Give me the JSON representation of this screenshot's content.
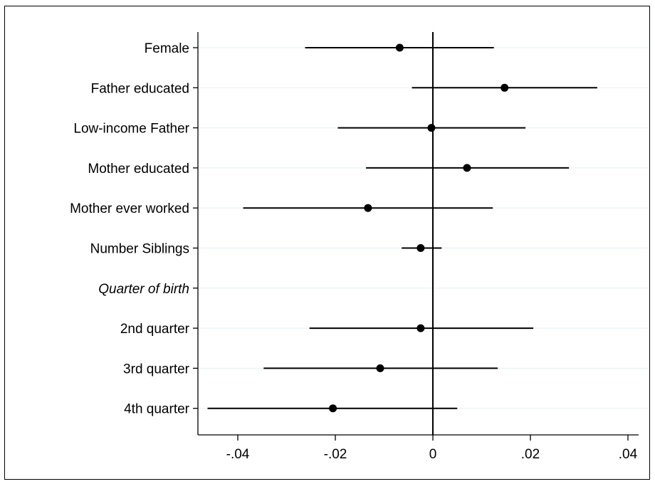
{
  "chart_data": {
    "type": "scatter",
    "subtype": "coefficient-plot",
    "title": "",
    "xlabel": "",
    "ylabel": "",
    "xlim": [
      -0.047,
      0.043
    ],
    "xticks": [
      -0.04,
      -0.02,
      0,
      0.02,
      0.04
    ],
    "xtick_labels": [
      "-.04",
      "-.02",
      "0",
      ".02",
      ".04"
    ],
    "reference_line_x": 0,
    "grid": "horizontal",
    "rows": [
      {
        "label": "Female",
        "estimate": -0.0068,
        "ci_low": -0.0262,
        "ci_high": 0.0125,
        "header": false
      },
      {
        "label": "Father educated",
        "estimate": 0.0147,
        "ci_low": -0.0043,
        "ci_high": 0.0337,
        "header": false
      },
      {
        "label": "Low-income Father",
        "estimate": -0.0003,
        "ci_low": -0.0195,
        "ci_high": 0.019,
        "header": false
      },
      {
        "label": "Mother educated",
        "estimate": 0.007,
        "ci_low": -0.0137,
        "ci_high": 0.0279,
        "header": false
      },
      {
        "label": "Mother ever worked",
        "estimate": -0.0133,
        "ci_low": -0.0389,
        "ci_high": 0.0123,
        "header": false
      },
      {
        "label": "Number Siblings",
        "estimate": -0.0025,
        "ci_low": -0.0064,
        "ci_high": 0.0018,
        "header": false
      },
      {
        "label": "Quarter of birth",
        "header": true
      },
      {
        "label": "2nd quarter",
        "estimate": -0.0025,
        "ci_low": -0.0253,
        "ci_high": 0.0206,
        "header": false
      },
      {
        "label": "3rd quarter",
        "estimate": -0.0108,
        "ci_low": -0.0347,
        "ci_high": 0.0133,
        "header": false
      },
      {
        "label": "4th quarter",
        "estimate": -0.0205,
        "ci_low": -0.0462,
        "ci_high": 0.005,
        "header": false
      }
    ],
    "colors": {
      "marker": "#000000",
      "ci_line": "#000000",
      "grid": "#e9f1f5",
      "axis": "#000000"
    }
  }
}
